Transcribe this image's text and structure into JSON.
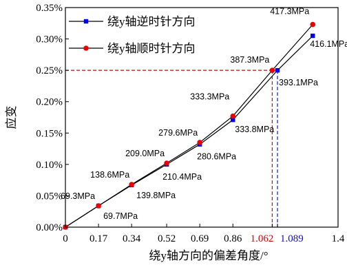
{
  "chart_data": {
    "type": "line",
    "xlabel": "绕y轴方向的偏差角度/°",
    "ylabel": "应变",
    "xlim": [
      0,
      1.4
    ],
    "ylim": [
      0,
      0.0035
    ],
    "x_ticks": [
      {
        "value": 0,
        "label": "0"
      },
      {
        "value": 0.17,
        "label": "0.17"
      },
      {
        "value": 0.34,
        "label": "0.34"
      },
      {
        "value": 0.52,
        "label": "0.52"
      },
      {
        "value": 0.69,
        "label": "0.69"
      },
      {
        "value": 0.86,
        "label": "0.86"
      },
      {
        "value": 1.062,
        "label": "1.062",
        "color": "#d00000"
      },
      {
        "value": 1.089,
        "label": "1.089",
        "color": "#1010c0"
      },
      {
        "value": 1.4,
        "label": "1.4"
      }
    ],
    "y_ticks": [
      {
        "value": 0,
        "label": "0.00%"
      },
      {
        "value": 0.0005,
        "label": "0.05%"
      },
      {
        "value": 0.001,
        "label": "0.10%"
      },
      {
        "value": 0.0015,
        "label": "0.15%"
      },
      {
        "value": 0.002,
        "label": "0.20%"
      },
      {
        "value": 0.0025,
        "label": "0.25%"
      },
      {
        "value": 0.003,
        "label": "0.30%"
      },
      {
        "value": 0.0035,
        "label": "0.35%"
      }
    ],
    "series": [
      {
        "name": "绕y轴逆时针方向",
        "color": "#0000ee",
        "marker": "square",
        "x": [
          0,
          0.17,
          0.34,
          0.52,
          0.69,
          0.86,
          1.089,
          1.27
        ],
        "y": [
          0,
          0.00034,
          0.00067,
          0.001,
          0.00132,
          0.00171,
          0.0025,
          0.00305
        ],
        "labels": [
          "",
          "69.7MPa",
          "139.8MPa",
          "210.4MPa",
          "280.6MPa",
          "333.8MPa",
          "393.1MPa",
          "416.1MPa"
        ]
      },
      {
        "name": "绕y轴顺时针方向",
        "color": "#ee0000",
        "marker": "circle",
        "x": [
          0,
          0.17,
          0.34,
          0.52,
          0.69,
          0.86,
          1.062,
          1.27
        ],
        "y": [
          0,
          0.00034,
          0.00068,
          0.00102,
          0.00135,
          0.00177,
          0.0025,
          0.00323
        ],
        "labels": [
          "",
          "69.3MPa",
          "138.6MPa",
          "209.0MPa",
          "279.6MPa",
          "333.3MPa",
          "387.3MPa",
          "417.3MPa"
        ]
      }
    ],
    "reference_lines": {
      "y": 0.0025,
      "x_ccw": 1.089,
      "x_cw": 1.062
    },
    "legend_position": "top-left",
    "grid": false
  }
}
